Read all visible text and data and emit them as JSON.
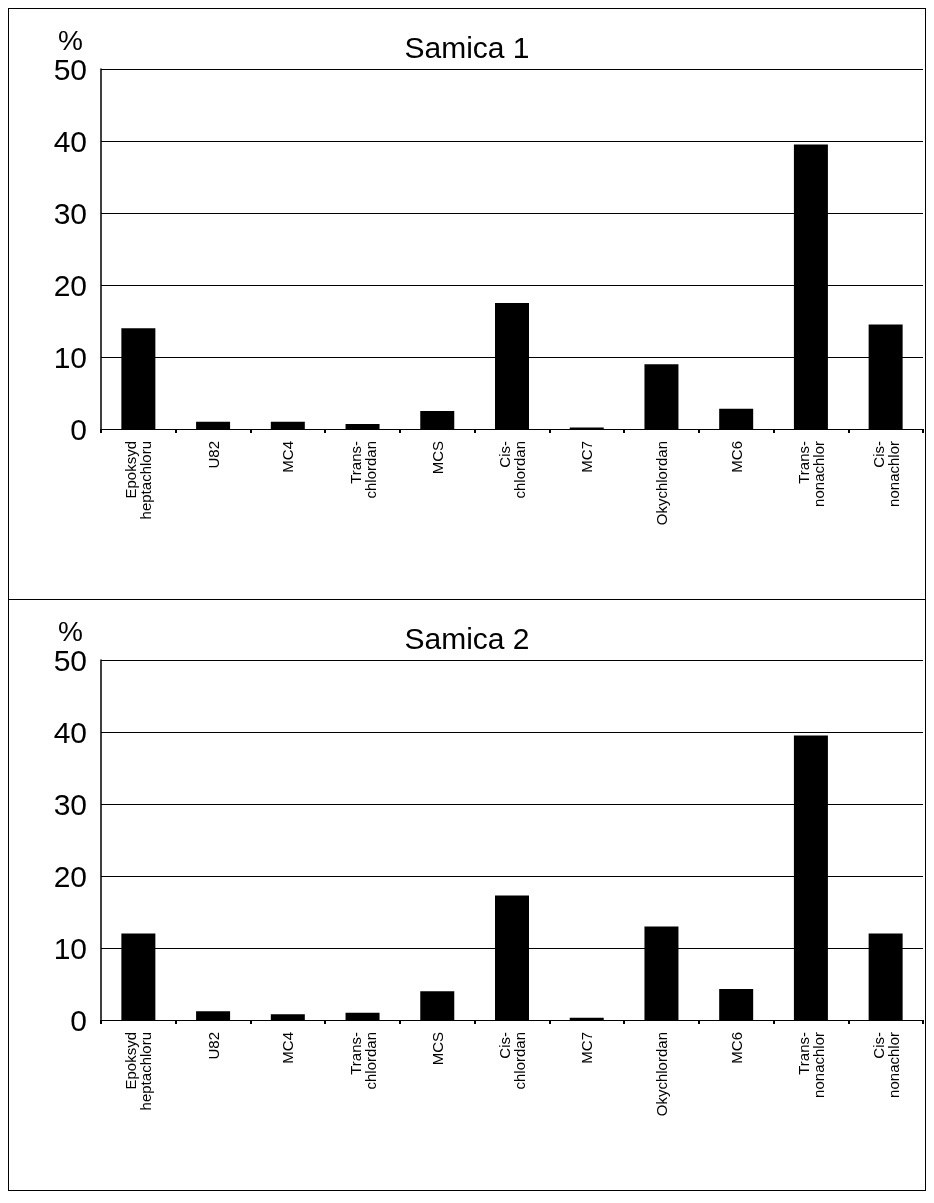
{
  "chart_data": [
    {
      "type": "bar",
      "title": "Samica 1",
      "ylabel": "%",
      "categories": [
        "Epoksyd\nheptachloru",
        "U82",
        "MC4",
        "Trans-\nchlordan",
        "MCS",
        "Cis-\nchlordan",
        "MC7",
        "Okychlordan",
        "MC6",
        "Trans-\nnonachlor",
        "Cis-\nnonachlor"
      ],
      "values": [
        14,
        1,
        1,
        0.7,
        2.5,
        17.5,
        0.2,
        9,
        2.8,
        39.5,
        14.5
      ],
      "color": "#000000",
      "ylim": [
        0,
        50
      ],
      "yticks": [
        0,
        10,
        20,
        30,
        40,
        50
      ],
      "grid": "y"
    },
    {
      "type": "bar",
      "title": "Samica 2",
      "ylabel": "%",
      "categories": [
        "Epoksyd\nheptachloru",
        "U82",
        "MC4",
        "Trans-\nchlordan",
        "MCS",
        "Cis-\nchlordan",
        "MC7",
        "Okychlordan",
        "MC6",
        "Trans-\nnonachlor",
        "Cis-\nnonachlor"
      ],
      "values": [
        12,
        1.2,
        0.8,
        1,
        4,
        17.3,
        0.3,
        13,
        4.3,
        39.5,
        12
      ],
      "color": "#000000",
      "ylim": [
        0,
        50
      ],
      "yticks": [
        0,
        10,
        20,
        30,
        40,
        50
      ],
      "grid": "y"
    }
  ]
}
